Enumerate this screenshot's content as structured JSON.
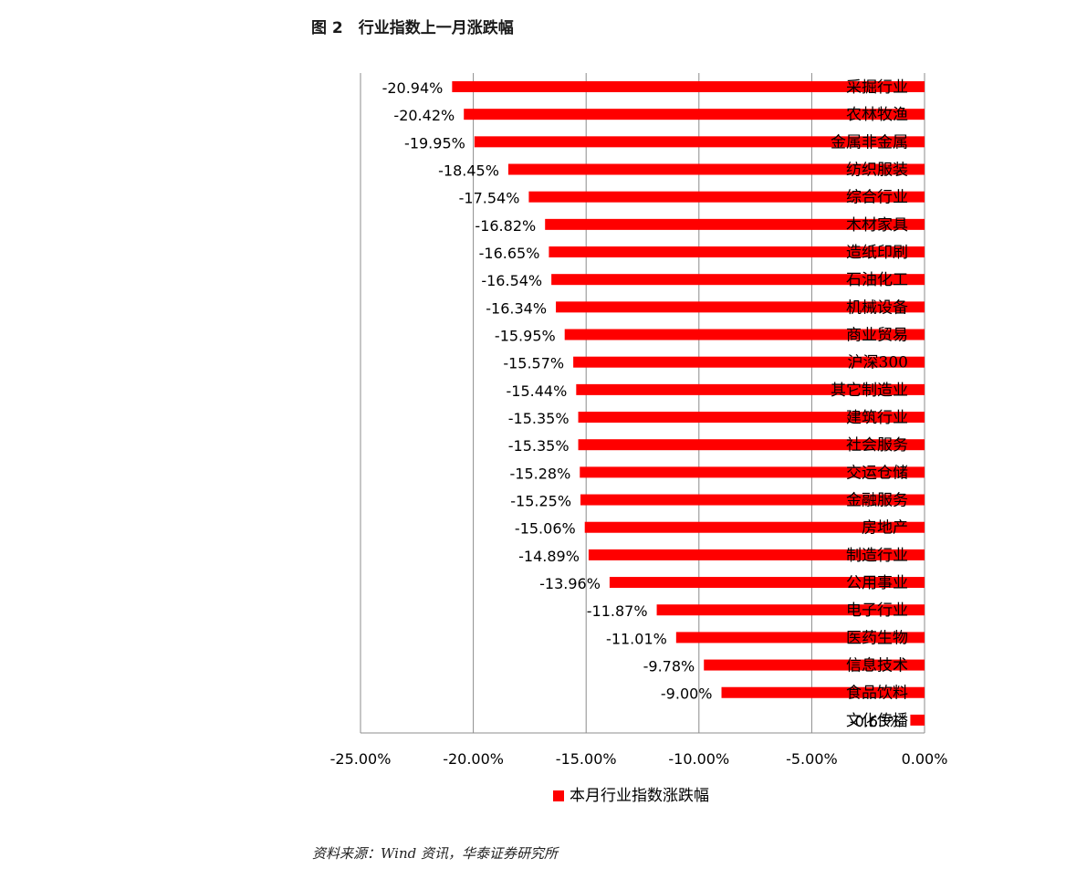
{
  "figure": {
    "caption": "图 2　行业指数上一月涨跌幅",
    "source": "资料来源：Wind 资讯，华泰证券研究所"
  },
  "colors": {
    "bar": "#ff0000",
    "grid": "#8c8c8c",
    "axis": "#8c8c8c",
    "text": "#000000"
  },
  "chart_data": {
    "type": "bar",
    "orientation": "horizontal",
    "categories": [
      "采掘行业",
      "农林牧渔",
      "金属非金属",
      "纺织服装",
      "综合行业",
      "木材家具",
      "造纸印刷",
      "石油化工",
      "机械设备",
      "商业贸易",
      "沪深300",
      "其它制造业",
      "建筑行业",
      "社会服务",
      "交运仓储",
      "金融服务",
      "房地产",
      "制造行业",
      "公用事业",
      "电子行业",
      "医药生物",
      "信息技术",
      "食品饮料",
      "文化传播"
    ],
    "series": [
      {
        "name": "本月行业指数涨跌幅",
        "values": [
          -20.94,
          -20.42,
          -19.95,
          -18.45,
          -17.54,
          -16.82,
          -16.65,
          -16.54,
          -16.34,
          -15.95,
          -15.57,
          -15.44,
          -15.35,
          -15.35,
          -15.28,
          -15.25,
          -15.06,
          -14.89,
          -13.96,
          -11.87,
          -11.01,
          -9.78,
          -9.0,
          -0.63
        ],
        "value_labels": [
          "-20.94%",
          "-20.42%",
          "-19.95%",
          "-18.45%",
          "-17.54%",
          "-16.82%",
          "-16.65%",
          "-16.54%",
          "-16.34%",
          "-15.95%",
          "-15.57%",
          "-15.44%",
          "-15.35%",
          "-15.35%",
          "-15.28%",
          "-15.25%",
          "-15.06%",
          "-14.89%",
          "-13.96%",
          "-11.87%",
          "-11.01%",
          "-9.78%",
          "-9.00%",
          "-0.63%"
        ]
      }
    ],
    "x_ticks": [
      -25,
      -20,
      -15,
      -10,
      -5,
      0
    ],
    "x_tick_labels": [
      "-25.00%",
      "-20.00%",
      "-15.00%",
      "-10.00%",
      "-5.00%",
      "0.00%"
    ],
    "xlim": [
      -25,
      0
    ],
    "grid": "vertical",
    "legend": "bottom"
  }
}
